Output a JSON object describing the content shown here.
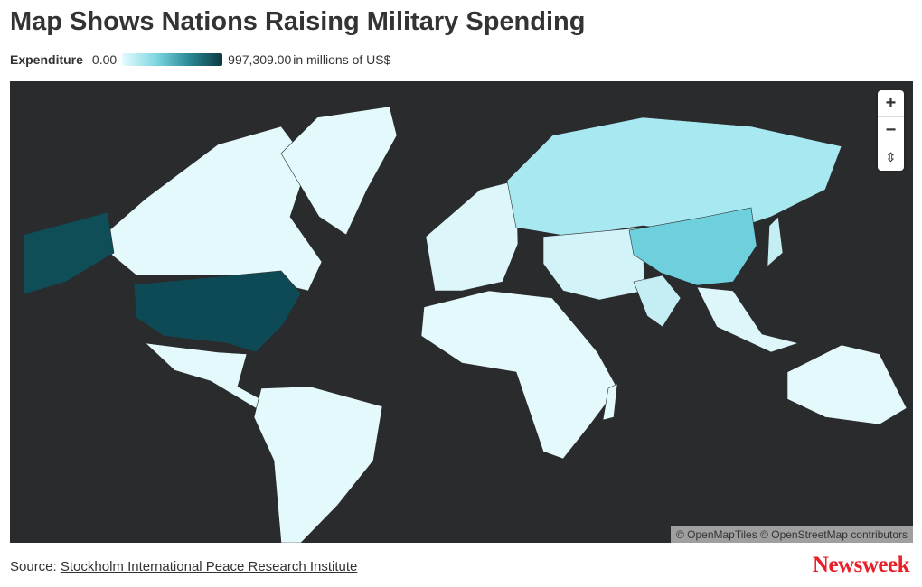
{
  "header": {
    "title": "Map Shows Nations Raising Military Spending"
  },
  "legend": {
    "label": "Expenditure",
    "min": "0.00",
    "max": "997,309.00",
    "unit": "in millions of US$"
  },
  "controls": {
    "zoom_in": "+",
    "zoom_out": "−",
    "reset": "⇳"
  },
  "attribution": "© OpenMapTiles © OpenStreetMap contributors",
  "footer": {
    "source_label": "Source:",
    "source_link": "Stockholm International Peace Research Institute",
    "logo": "Newsweek"
  }
}
